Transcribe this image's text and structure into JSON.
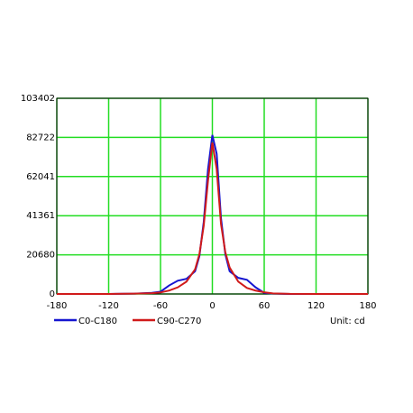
{
  "chart_data": {
    "type": "line",
    "x": [
      -180,
      -150,
      -120,
      -90,
      -70,
      -60,
      -50,
      -40,
      -30,
      -20,
      -15,
      -10,
      -5,
      0,
      5,
      10,
      15,
      20,
      30,
      40,
      50,
      60,
      70,
      90,
      120,
      150,
      180
    ],
    "series": [
      {
        "name": "C0-C180",
        "color": "#1515d0",
        "values": [
          0,
          0,
          0,
          200,
          600,
          1200,
          4500,
          7000,
          8000,
          12000,
          20000,
          38000,
          66000,
          84000,
          74000,
          40000,
          21000,
          12000,
          8500,
          7500,
          3500,
          600,
          200,
          0,
          0,
          0,
          0
        ]
      },
      {
        "name": "C90-C270",
        "color": "#d01a1a",
        "values": [
          0,
          0,
          0,
          150,
          400,
          800,
          1800,
          3500,
          6500,
          13000,
          21000,
          36000,
          60000,
          80000,
          66000,
          37000,
          22000,
          14000,
          6500,
          3200,
          1800,
          900,
          300,
          50,
          0,
          0,
          0
        ]
      }
    ],
    "xlim": [
      -180,
      180
    ],
    "xticks": [
      -180,
      -120,
      -60,
      0,
      60,
      120,
      180
    ],
    "ylim": [
      0,
      103402
    ],
    "yticks": [
      0,
      20680,
      41361,
      62041,
      82722,
      103402
    ],
    "grid": true,
    "grid_color": "#22dd22",
    "annotation": "Unit: cd"
  }
}
